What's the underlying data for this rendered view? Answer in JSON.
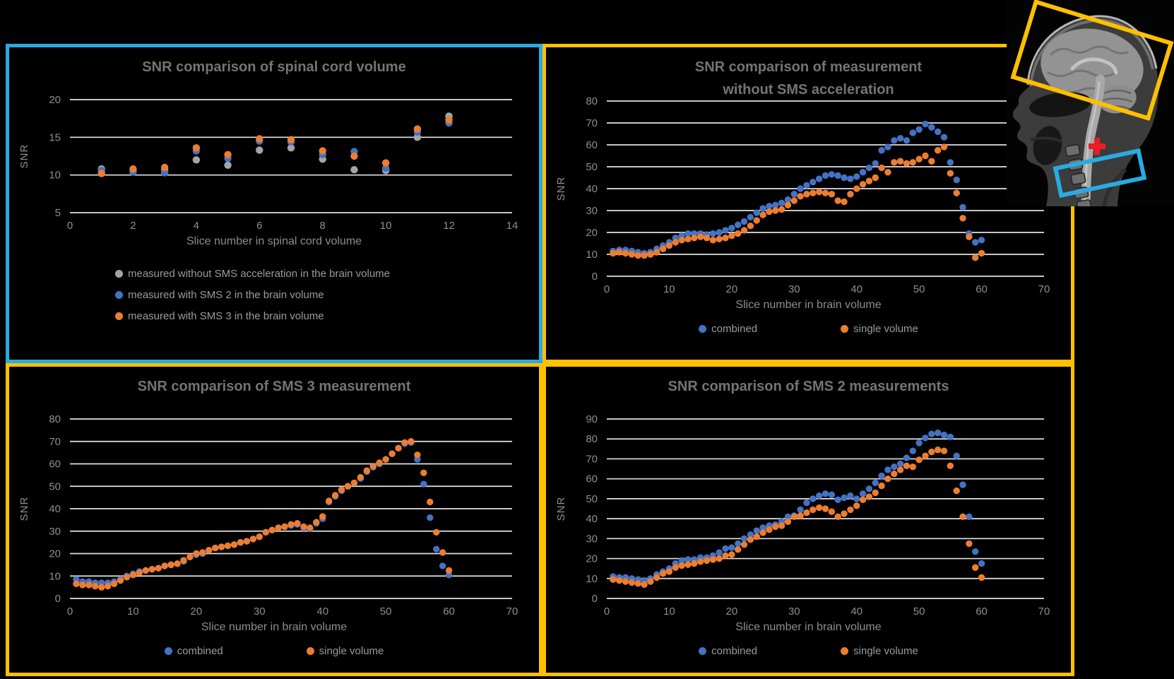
{
  "figure": {
    "background": "#000000"
  },
  "colors": {
    "gridline": "#E2E2E2",
    "tick_text": "#8E8E8E",
    "axis_title_text": "#8D8D8D",
    "chart_title_text": "#747474",
    "legend_text": "#9B9B9B",
    "blue": "#4472C4",
    "orange": "#ED7D31",
    "gray": "#A5A5A5",
    "panel_yellow": "#FFC000",
    "panel_cyan": "#29ABE2",
    "crosshair_red": "#EC1C24"
  },
  "mri_inset": {
    "description": "sagittal head MRI with acquisition boxes",
    "brain_roi_color": "#FFC000",
    "cord_roi_color": "#29ABE2",
    "crosshair_color": "#EC1C24"
  },
  "chart_data": [
    {
      "type": "scatter",
      "title": "SNR comparison of spinal cord volume",
      "x_label": "Slice number in spinal cord volume",
      "y_label": "SNR",
      "panel_border_color": "#29ABE2",
      "legend_position": "bottom-left-vertical",
      "grid": true,
      "x_ticks": [
        0,
        2,
        4,
        6,
        8,
        10,
        12,
        14
      ],
      "y_ticks": [
        5,
        10,
        15,
        20
      ],
      "marker_radius": 5.2,
      "x_values": [
        1,
        2,
        3,
        4,
        5,
        6,
        7,
        8,
        9,
        10,
        11,
        12
      ],
      "series": [
        {
          "name": "measured without SMS acceleration in the brain volume",
          "color": "#A5A5A5",
          "values": [
            10.8,
            10.5,
            10.7,
            12.0,
            11.3,
            13.3,
            13.6,
            12.1,
            10.7,
            10.6,
            15.0,
            17.8
          ]
        },
        {
          "name": "measured with SMS 2 in the brain volume",
          "color": "#4472C4",
          "values": [
            10.6,
            10.4,
            10.3,
            13.2,
            12.2,
            14.5,
            14.4,
            12.7,
            13.1,
            10.9,
            15.7,
            16.9
          ]
        },
        {
          "name": "measured with SMS 3 in the brain volume",
          "color": "#ED7D31",
          "values": [
            10.2,
            10.8,
            11.0,
            13.6,
            12.7,
            14.8,
            14.7,
            13.2,
            12.5,
            11.6,
            16.1,
            17.3
          ]
        }
      ]
    },
    {
      "type": "scatter",
      "title": "SNR comparison of measurement\nwithout SMS acceleration",
      "x_label": "Slice number in brain volume",
      "y_label": "SNR",
      "panel_border_color": "#FFC000",
      "legend_position": "bottom-horizontal",
      "grid": true,
      "x_ticks": [
        0,
        10,
        20,
        30,
        40,
        50,
        60,
        70
      ],
      "y_ticks": [
        0,
        10,
        20,
        30,
        40,
        50,
        60,
        70,
        80
      ],
      "marker_radius": 4.7,
      "x_values": [
        1,
        2,
        3,
        4,
        5,
        6,
        7,
        8,
        9,
        10,
        11,
        12,
        13,
        14,
        15,
        16,
        17,
        18,
        19,
        20,
        21,
        22,
        23,
        24,
        25,
        26,
        27,
        28,
        29,
        30,
        31,
        32,
        33,
        34,
        35,
        36,
        37,
        38,
        39,
        40,
        41,
        42,
        43,
        44,
        45,
        46,
        47,
        48,
        49,
        50,
        51,
        52,
        53,
        54,
        55,
        56,
        57,
        58,
        59,
        60
      ],
      "series": [
        {
          "name": "combined",
          "color": "#4472C4",
          "values": [
            11.5,
            12,
            12,
            11.5,
            11,
            10.5,
            11,
            12.5,
            14,
            15.5,
            17.5,
            18.5,
            19.5,
            19.5,
            19.5,
            19,
            19.5,
            20,
            21,
            22,
            23.5,
            25,
            27,
            29,
            31,
            32,
            32.5,
            33.5,
            35,
            37.5,
            40,
            41.5,
            43,
            44.5,
            46,
            46.5,
            46,
            45,
            44.5,
            45.5,
            47.5,
            49.5,
            51.5,
            57.5,
            59,
            62,
            63,
            62,
            65.5,
            67,
            69.5,
            68,
            66,
            63.5,
            52,
            44,
            31.5,
            19.5,
            15.5,
            16.5
          ]
        },
        {
          "name": "single volume",
          "color": "#ED7D31",
          "values": [
            10.5,
            11,
            10.5,
            10,
            9.5,
            9.5,
            10,
            11,
            12.5,
            14,
            15.5,
            16.5,
            17,
            17.5,
            18,
            17.5,
            16.5,
            17,
            17.5,
            18.5,
            19.5,
            21,
            23,
            25.5,
            28,
            29.5,
            30,
            30.5,
            32.5,
            34.5,
            36.5,
            37.5,
            38,
            38.5,
            38,
            37.5,
            34.5,
            34,
            37.5,
            40,
            42,
            43.5,
            45,
            49.5,
            47.5,
            52,
            52.5,
            51.5,
            52,
            53.5,
            55,
            52.5,
            57.5,
            59,
            47,
            38,
            26.5,
            18,
            8.5,
            10.5
          ]
        }
      ]
    },
    {
      "type": "scatter",
      "title": "SNR comparison of SMS 3 measurement",
      "x_label": "Slice number in brain volume",
      "y_label": "SNR",
      "panel_border_color": "#FFC000",
      "legend_position": "bottom-horizontal",
      "grid": true,
      "x_ticks": [
        0,
        10,
        20,
        30,
        40,
        50,
        60,
        70
      ],
      "y_ticks": [
        0,
        10,
        20,
        30,
        40,
        50,
        60,
        70,
        80
      ],
      "marker_radius": 4.7,
      "x_values": [
        1,
        2,
        3,
        4,
        5,
        6,
        7,
        8,
        9,
        10,
        11,
        12,
        13,
        14,
        15,
        16,
        17,
        18,
        19,
        20,
        21,
        22,
        23,
        24,
        25,
        26,
        27,
        28,
        29,
        30,
        31,
        32,
        33,
        34,
        35,
        36,
        37,
        38,
        39,
        40,
        41,
        42,
        43,
        44,
        45,
        46,
        47,
        48,
        49,
        50,
        51,
        52,
        53,
        54,
        55,
        56,
        57,
        58,
        59,
        60
      ],
      "series": [
        {
          "name": "combined",
          "color": "#4472C4",
          "values": [
            8.5,
            7.5,
            7.5,
            7,
            7,
            7,
            7.5,
            8.5,
            10,
            11,
            12,
            12.5,
            13,
            13.5,
            14.5,
            15,
            15.5,
            16.5,
            18.5,
            19.5,
            20,
            21.5,
            22.5,
            23,
            23.5,
            24,
            25,
            25.5,
            26.5,
            27.5,
            29.5,
            30.5,
            31.5,
            32,
            32.5,
            33,
            31.5,
            31,
            33.5,
            35.5,
            43,
            45.5,
            48,
            50,
            51.5,
            53.5,
            56.5,
            58.5,
            60,
            62,
            64.5,
            67,
            69,
            69.5,
            62,
            51,
            36,
            22,
            14.5,
            10.5
          ]
        },
        {
          "name": "single volume",
          "color": "#ED7D31",
          "values": [
            6.5,
            6,
            6,
            5.5,
            5,
            5.5,
            6.5,
            8,
            9.5,
            10.5,
            11.5,
            12.5,
            13,
            13.5,
            14.5,
            15,
            15.5,
            17,
            18.5,
            20,
            20.5,
            21.5,
            22.5,
            23,
            23.5,
            24,
            25,
            25.5,
            26.5,
            27.5,
            29.5,
            30.5,
            31.5,
            32,
            33,
            33.5,
            32,
            31.5,
            34,
            36.5,
            43.5,
            46,
            48.5,
            50,
            51.5,
            54,
            57,
            59,
            60.5,
            62,
            64.5,
            67,
            69.5,
            70,
            64,
            56,
            43,
            29.5,
            20.5,
            12.5
          ]
        }
      ]
    },
    {
      "type": "scatter",
      "title": "SNR comparison of SMS 2 measurements",
      "x_label": "Slice number in brain volume",
      "y_label": "SNR",
      "panel_border_color": "#FFC000",
      "legend_position": "bottom-horizontal",
      "grid": true,
      "x_ticks": [
        0,
        10,
        20,
        30,
        40,
        50,
        60,
        70
      ],
      "y_ticks": [
        0,
        10,
        20,
        30,
        40,
        50,
        60,
        70,
        80,
        90
      ],
      "marker_radius": 4.7,
      "x_values": [
        1,
        2,
        3,
        4,
        5,
        6,
        7,
        8,
        9,
        10,
        11,
        12,
        13,
        14,
        15,
        16,
        17,
        18,
        19,
        20,
        21,
        22,
        23,
        24,
        25,
        26,
        27,
        28,
        29,
        30,
        31,
        32,
        33,
        34,
        35,
        36,
        37,
        38,
        39,
        40,
        41,
        42,
        43,
        44,
        45,
        46,
        47,
        48,
        49,
        50,
        51,
        52,
        53,
        54,
        55,
        56,
        57,
        58,
        59,
        60
      ],
      "series": [
        {
          "name": "combined",
          "color": "#4472C4",
          "values": [
            11,
            10.5,
            10.5,
            10,
            9.5,
            9,
            10,
            12,
            13.5,
            15,
            17.5,
            19,
            19.5,
            19.5,
            20.5,
            20.5,
            21.5,
            23,
            25,
            25.5,
            27.5,
            30,
            32,
            34,
            35.5,
            36.5,
            37,
            38.5,
            41,
            41.5,
            44.5,
            48,
            50,
            51.5,
            52.5,
            52,
            49.5,
            50.5,
            51.5,
            50,
            52.5,
            55,
            58,
            61.5,
            64.5,
            66,
            67.5,
            70.5,
            74,
            78,
            80.5,
            82.5,
            83,
            82,
            81,
            71.5,
            57,
            41,
            23.5,
            17.5
          ]
        },
        {
          "name": "single volume",
          "color": "#ED7D31",
          "values": [
            9.5,
            9,
            8.5,
            8,
            7.5,
            7,
            8.5,
            10.5,
            12.5,
            13.5,
            15.5,
            16.5,
            17,
            17.5,
            18.5,
            19,
            19.5,
            20,
            21.5,
            22,
            24.5,
            27,
            29.5,
            31,
            33,
            34.5,
            36,
            36.5,
            38.5,
            41,
            41.5,
            43,
            44.5,
            45.5,
            45,
            43.5,
            41,
            42.5,
            44.5,
            46.5,
            49.5,
            51,
            53,
            56.5,
            60,
            62.5,
            64.5,
            66.5,
            66,
            69.5,
            71.5,
            73.5,
            74.5,
            74,
            66.5,
            54,
            41,
            27.5,
            15.5,
            10.5
          ]
        }
      ]
    }
  ]
}
